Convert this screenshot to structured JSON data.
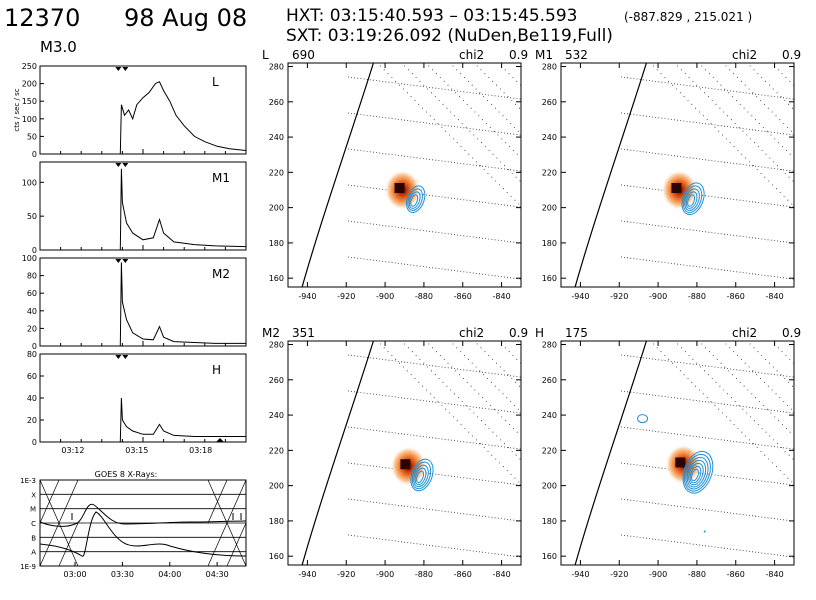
{
  "header": {
    "flare_id": "12370",
    "date": "98 Aug 08",
    "hxt_line": "HXT: 03:15:40.593 – 03:15:45.593",
    "coords": "(-887.829 , 215.021 )",
    "sxt_line": "SXT: 03:19:26.092 (NuDen,Be119,Full)",
    "goes_class": "M3.0"
  },
  "colors": {
    "contour": "#1f8fd6",
    "hot": "#c8360a",
    "ink": "#000000"
  },
  "lightcurves": {
    "ylabel": "cts / sec / sc",
    "x_ticks": [
      "03:12",
      "03:15",
      "03:18"
    ],
    "panels": [
      {
        "band": "L",
        "yticks": [
          "0",
          "50",
          "100",
          "150",
          "200",
          "250"
        ],
        "ymax": 250,
        "series": [
          [
            0,
            0
          ],
          [
            0.37,
            0
          ],
          [
            0.39,
            0
          ],
          [
            0.395,
            140
          ],
          [
            0.41,
            110
          ],
          [
            0.43,
            125
          ],
          [
            0.45,
            100
          ],
          [
            0.47,
            140
          ],
          [
            0.5,
            160
          ],
          [
            0.53,
            175
          ],
          [
            0.56,
            200
          ],
          [
            0.58,
            205
          ],
          [
            0.6,
            180
          ],
          [
            0.63,
            150
          ],
          [
            0.66,
            110
          ],
          [
            0.7,
            80
          ],
          [
            0.75,
            50
          ],
          [
            0.8,
            35
          ],
          [
            0.86,
            22
          ],
          [
            0.92,
            15
          ],
          [
            1,
            10
          ]
        ]
      },
      {
        "band": "M1",
        "yticks": [
          "0",
          "50",
          "100"
        ],
        "ymax": 130,
        "series": [
          [
            0,
            0
          ],
          [
            0.37,
            0
          ],
          [
            0.39,
            0
          ],
          [
            0.395,
            120
          ],
          [
            0.4,
            70
          ],
          [
            0.42,
            40
          ],
          [
            0.45,
            25
          ],
          [
            0.5,
            15
          ],
          [
            0.55,
            18
          ],
          [
            0.58,
            45
          ],
          [
            0.6,
            25
          ],
          [
            0.65,
            12
          ],
          [
            0.75,
            8
          ],
          [
            0.85,
            6
          ],
          [
            1,
            5
          ]
        ]
      },
      {
        "band": "M2",
        "yticks": [
          "0",
          "20",
          "40",
          "60",
          "80",
          "100"
        ],
        "ymax": 100,
        "series": [
          [
            0,
            0
          ],
          [
            0.37,
            0
          ],
          [
            0.39,
            0
          ],
          [
            0.395,
            95
          ],
          [
            0.4,
            50
          ],
          [
            0.42,
            30
          ],
          [
            0.45,
            15
          ],
          [
            0.5,
            8
          ],
          [
            0.55,
            7
          ],
          [
            0.58,
            22
          ],
          [
            0.6,
            10
          ],
          [
            0.65,
            5
          ],
          [
            0.75,
            4
          ],
          [
            0.85,
            3
          ],
          [
            1,
            3
          ]
        ]
      },
      {
        "band": "H",
        "yticks": [
          "0",
          "20",
          "40",
          "60",
          "80"
        ],
        "ymax": 80,
        "series": [
          [
            0,
            0
          ],
          [
            0.37,
            0
          ],
          [
            0.39,
            0
          ],
          [
            0.395,
            40
          ],
          [
            0.4,
            20
          ],
          [
            0.42,
            14
          ],
          [
            0.45,
            10
          ],
          [
            0.5,
            7
          ],
          [
            0.55,
            7
          ],
          [
            0.58,
            16
          ],
          [
            0.6,
            10
          ],
          [
            0.65,
            6
          ],
          [
            0.75,
            5
          ],
          [
            0.85,
            5
          ],
          [
            1,
            5
          ]
        ]
      }
    ]
  },
  "goes": {
    "title": "GOES 8 X-Rays:",
    "levels": [
      "1E-3",
      "X",
      "M",
      "C",
      "B",
      "A",
      "1E-9"
    ],
    "x_ticks": [
      "03:00",
      "03:30",
      "04:00",
      "04:30"
    ]
  },
  "chart_data": [
    {
      "type": "image",
      "label": "L",
      "counts": "690",
      "chi2_label": "chi2",
      "chi2": "0.9",
      "xlim": [
        -950,
        -830
      ],
      "ylim": [
        155,
        282
      ],
      "x_ticks": [
        "-940",
        "-920",
        "-900",
        "-880",
        "-860",
        "-840"
      ],
      "y_ticks": [
        "160",
        "180",
        "200",
        "220",
        "240",
        "260",
        "280"
      ],
      "source_center": [
        -887,
        206
      ]
    },
    {
      "type": "image",
      "label": "M1",
      "counts": "532",
      "chi2_label": "chi2",
      "chi2": "0.9",
      "xlim": [
        -950,
        -830
      ],
      "ylim": [
        155,
        282
      ],
      "x_ticks": [
        "-940",
        "-920",
        "-900",
        "-880",
        "-860",
        "-840"
      ],
      "y_ticks": [
        "160",
        "180",
        "200",
        "220",
        "240",
        "260",
        "280"
      ],
      "source_center": [
        -885,
        206
      ]
    },
    {
      "type": "image",
      "label": "M2",
      "counts": "351",
      "chi2_label": "chi2",
      "chi2": "0.9",
      "xlim": [
        -950,
        -830
      ],
      "ylim": [
        155,
        282
      ],
      "x_ticks": [
        "-940",
        "-920",
        "-900",
        "-880",
        "-860",
        "-840"
      ],
      "y_ticks": [
        "160",
        "180",
        "200",
        "220",
        "240",
        "260",
        "280"
      ],
      "source_center": [
        -884,
        207
      ]
    },
    {
      "type": "image",
      "label": "H",
      "counts": "175",
      "chi2_label": "chi2",
      "chi2": "0.9",
      "xlim": [
        -950,
        -830
      ],
      "ylim": [
        155,
        282
      ],
      "x_ticks": [
        "-940",
        "-920",
        "-900",
        "-880",
        "-860",
        "-840"
      ],
      "y_ticks": [
        "160",
        "180",
        "200",
        "220",
        "240",
        "260",
        "280"
      ],
      "source_center": [
        -883,
        208
      ]
    }
  ]
}
